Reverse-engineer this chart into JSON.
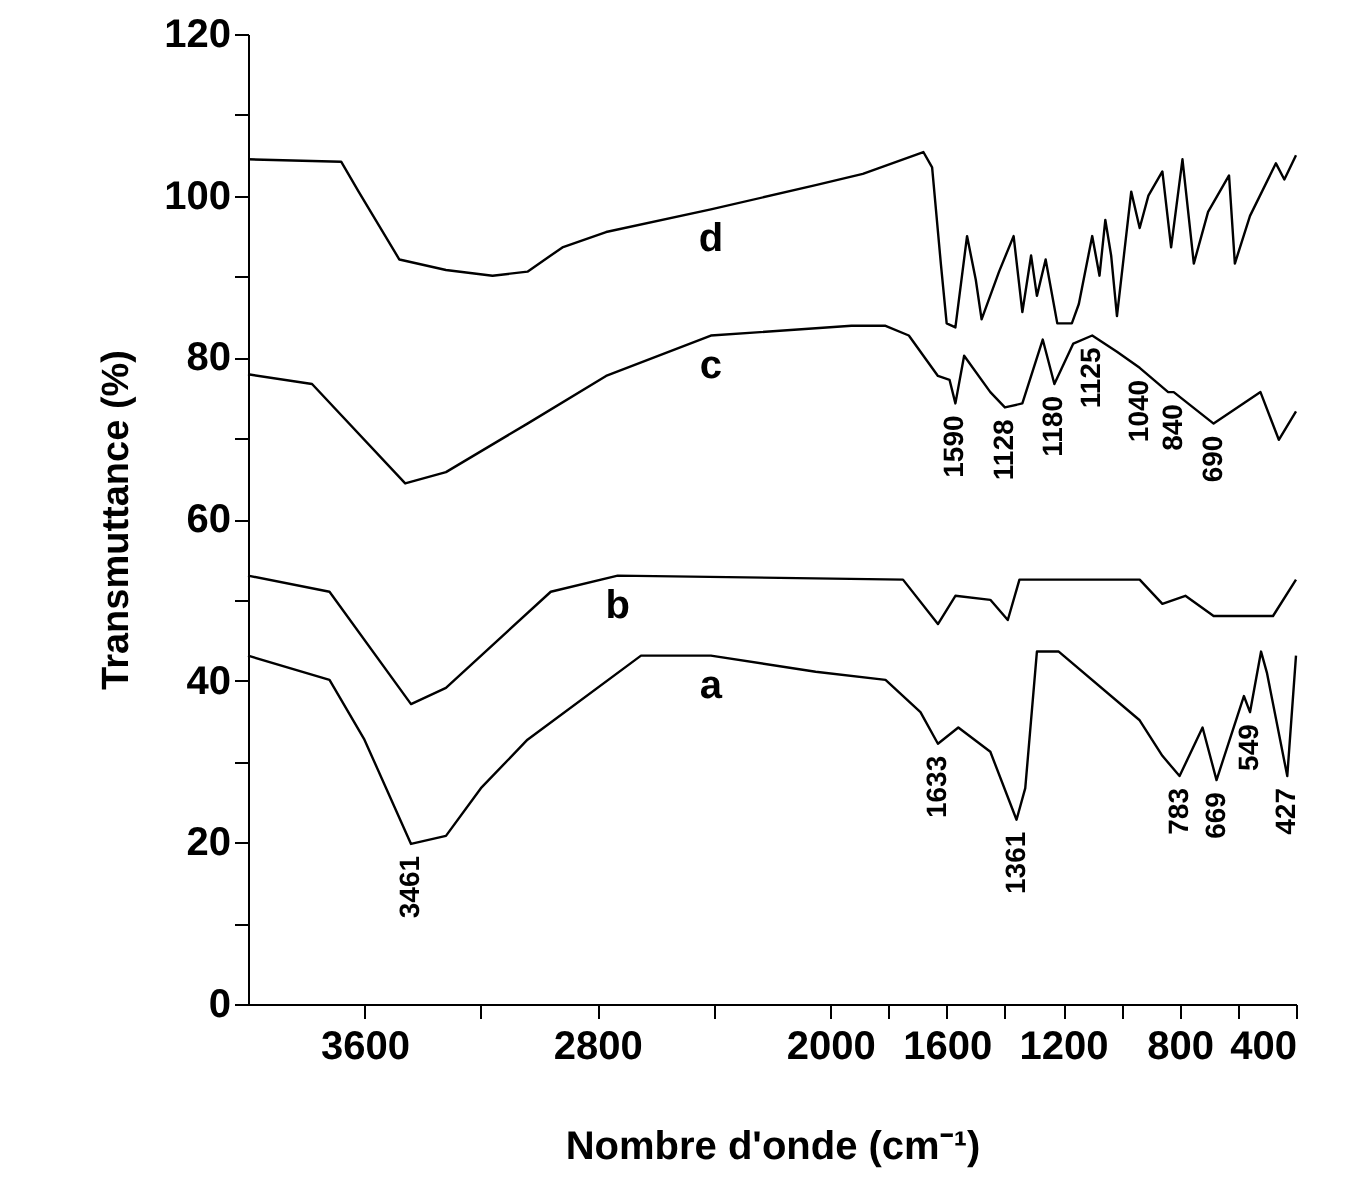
{
  "chart_data": {
    "type": "line",
    "xlabel": "Nombre d'onde (cm⁻¹)",
    "ylabel": "Transmuttance (%)",
    "xlim": [
      4000,
      400
    ],
    "xticks": [
      3600,
      {
        "value": 3200,
        "label": null
      },
      2800,
      {
        "value": 2400,
        "label": null
      },
      2000,
      {
        "value": 1800,
        "label": null
      },
      1600,
      {
        "value": 1400,
        "label": null
      },
      1200,
      {
        "value": 1000,
        "label": null
      },
      800,
      {
        "value": 600,
        "label": null
      },
      400
    ],
    "ylim": [
      0,
      120
    ],
    "yticks": [
      0,
      {
        "value": 10,
        "label": null
      },
      20,
      {
        "value": 30,
        "label": null
      },
      40,
      {
        "value": 50,
        "label": null
      },
      60,
      {
        "value": 70,
        "label": null
      },
      80,
      {
        "value": 90,
        "label": null
      },
      100,
      {
        "value": 110,
        "label": null
      },
      120
    ],
    "grid": false,
    "marker": "none",
    "line_style": "solid",
    "series": [
      {
        "name": "d",
        "color": "#000000",
        "x": [
          4000,
          3680,
          3620,
          3480,
          3320,
          3160,
          3040,
          2920,
          2770,
          2410,
          2050,
          1888,
          1680,
          1650,
          1620,
          1600,
          1570,
          1530,
          1500,
          1480,
          1420,
          1370,
          1340,
          1310,
          1290,
          1260,
          1220,
          1170,
          1146,
          1100,
          1075,
          1055,
          1035,
          1015,
          966,
          937,
          907,
          859,
          829,
          790,
          751,
          702,
          630,
          610,
          558,
          469,
          440,
          400
        ],
        "values": [
          104.5,
          104.2,
          100.5,
          92.1,
          90.8,
          90.1,
          90.6,
          93.6,
          95.5,
          98.3,
          101.3,
          102.7,
          105.4,
          103.5,
          91.6,
          84.2,
          83.7,
          95,
          89.6,
          84.7,
          90.6,
          95,
          85.6,
          92.6,
          87.6,
          92.1,
          84.2,
          84.2,
          86.6,
          95,
          90.1,
          97,
          92.6,
          85.1,
          100.5,
          96,
          100,
          103,
          93.6,
          104.5,
          91.6,
          98,
          102.5,
          91.6,
          97.5,
          104,
          102,
          105
        ]
      },
      {
        "name": "c",
        "color": "#000000",
        "x": [
          4000,
          3780,
          3460,
          3320,
          3040,
          2770,
          2410,
          1927,
          1810,
          1730,
          1630,
          1590,
          1570,
          1540,
          1450,
          1400,
          1340,
          1270,
          1230,
          1165,
          1100,
          1015,
          937,
          839,
          820,
          683,
          522,
          459,
          400
        ],
        "values": [
          77.9,
          76.7,
          64.4,
          65.8,
          71.8,
          77.7,
          82.7,
          83.9,
          83.9,
          82.7,
          77.7,
          77.2,
          74.3,
          80.2,
          75.7,
          73.8,
          74.3,
          82.2,
          76.7,
          81.7,
          82.7,
          80.7,
          78.7,
          75.7,
          75.7,
          71.8,
          75.7,
          69.8,
          73.3
        ]
      },
      {
        "name": "b",
        "color": "#000000",
        "x": [
          4000,
          3720,
          3440,
          3320,
          2960,
          2730,
          1750,
          1630,
          1570,
          1450,
          1390,
          1350,
          937,
          859,
          780,
          683,
          479,
          400
        ],
        "values": [
          53,
          51,
          37.1,
          39.1,
          51,
          53,
          52.5,
          47,
          50.5,
          50,
          47.5,
          52.5,
          52.5,
          49.5,
          50.5,
          48,
          48,
          52.5
        ]
      },
      {
        "name": "a",
        "color": "#000000",
        "x": [
          4000,
          3720,
          3600,
          3440,
          3320,
          3200,
          3040,
          2650,
          2410,
          2050,
          1810,
          1690,
          1630,
          1560,
          1450,
          1360,
          1330,
          1290,
          1215,
          937,
          859,
          800,
          721,
          673,
          579,
          558,
          520,
          500,
          430,
          400
        ],
        "values": [
          43.1,
          40.1,
          32.7,
          19.8,
          20.8,
          26.7,
          32.7,
          43.1,
          43.1,
          41.1,
          40.1,
          36.1,
          32.2,
          34.2,
          31.2,
          22.8,
          26.7,
          43.6,
          43.6,
          35.1,
          30.7,
          28.2,
          34.2,
          27.7,
          38.1,
          36.1,
          43.6,
          41,
          28.2,
          43.1
        ]
      }
    ],
    "annotations": [
      {
        "text": "3461",
        "x": 3440,
        "y": 19.8
      },
      {
        "text": "1633",
        "x": 1630,
        "y": 32.2
      },
      {
        "text": "1361",
        "x": 1360,
        "y": 22.8
      },
      {
        "text": "783",
        "x": 800,
        "y": 28.2
      },
      {
        "text": "669",
        "x": 673,
        "y": 27.7
      },
      {
        "text": "549",
        "x": 558,
        "y": 36.1
      },
      {
        "text": "427",
        "x": 430,
        "y": 28.2
      },
      {
        "text": "1590",
        "x": 1570,
        "y": 74.3
      },
      {
        "text": "1128",
        "x": 1400,
        "y": 73.8
      },
      {
        "text": "1180",
        "x": 1230,
        "y": 76.7
      },
      {
        "text": "1125",
        "x": 1100,
        "y": 82.7
      },
      {
        "text": "1040",
        "x": 937,
        "y": 78.7
      },
      {
        "text": "840",
        "x": 820,
        "y": 75.7
      },
      {
        "text": "690",
        "x": 683,
        "y": 71.8
      }
    ]
  }
}
